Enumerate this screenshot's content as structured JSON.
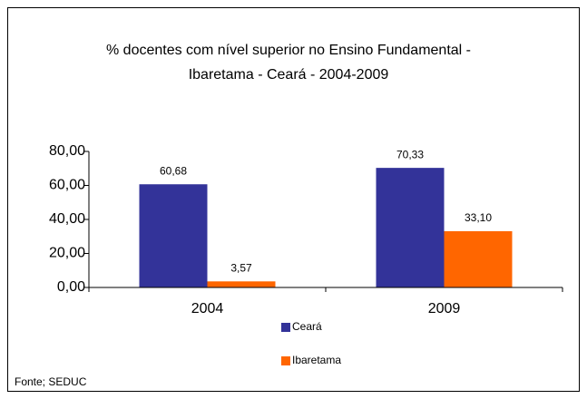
{
  "chart_data": {
    "type": "bar",
    "title": [
      "% docentes com nível  superior no Ensino Fundamental -",
      "Ibaretama  -  Ceará - 2004-2009"
    ],
    "categories": [
      "2004",
      "2009"
    ],
    "series": [
      {
        "name": "Ceará",
        "color": "#333399",
        "values": [
          60.68,
          70.33
        ],
        "value_labels": [
          "60,68",
          "70,33"
        ]
      },
      {
        "name": "Ibaretama",
        "color": "#ff6600",
        "values": [
          3.57,
          33.1
        ],
        "value_labels": [
          "3,57",
          "33,10"
        ]
      }
    ],
    "ylim": [
      0,
      80
    ],
    "yticks": [
      {
        "value": 0,
        "label": "0,00"
      },
      {
        "value": 20,
        "label": "20,00"
      },
      {
        "value": 40,
        "label": "40,00"
      },
      {
        "value": 60,
        "label": "60,00"
      },
      {
        "value": 80,
        "label": "80,00"
      }
    ],
    "legend": "bottom",
    "source": "Fonte; SEDUC"
  }
}
